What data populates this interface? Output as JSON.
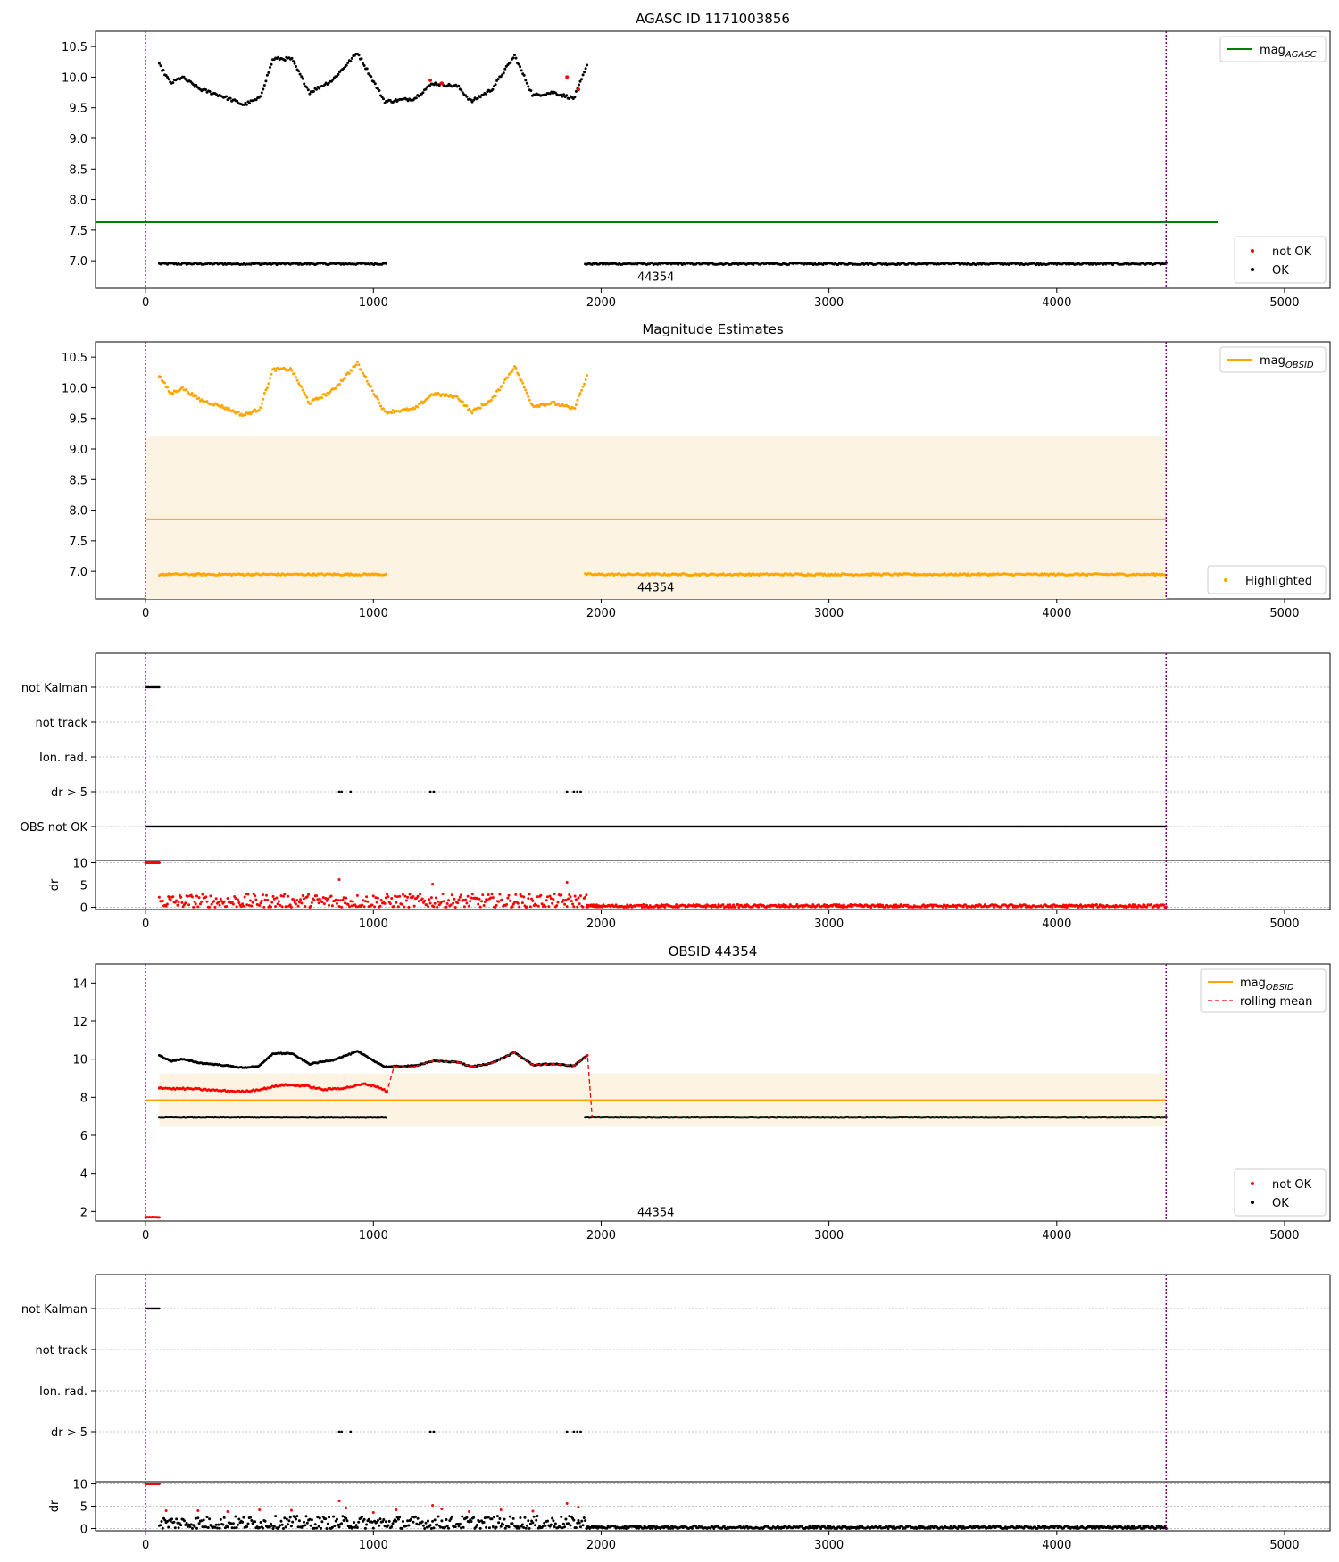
{
  "colors": {
    "ok": "#000000",
    "not_ok": "#ff0000",
    "agasc_line": "#008000",
    "obsid_line": "#ffa500",
    "band": "#fdf3e3",
    "obs_boundary": "#800080",
    "rolling_mean": "#ff0000",
    "grid": "#b0b0b0"
  },
  "chart_data": [
    {
      "id": "agasc",
      "type": "scatter",
      "title": "AGASC ID 1171003856",
      "xlim": [
        -220,
        5200
      ],
      "ylim": [
        6.55,
        10.75
      ],
      "xticks": [
        0,
        1000,
        2000,
        3000,
        4000,
        5000
      ],
      "yticks": [
        7.0,
        7.5,
        8.0,
        8.5,
        9.0,
        9.5,
        10.0,
        10.5
      ],
      "obs_boundaries": [
        0,
        4480
      ],
      "reference_line": {
        "label_main": "mag",
        "label_sub": "AGASC",
        "value": 7.63,
        "x_range": [
          -220,
          4710
        ]
      },
      "annotation": {
        "text": "44354",
        "x": 2240,
        "y": 6.75
      },
      "legend_top": "top-right",
      "legend_bottom": "bottom-right",
      "legend": [
        {
          "label": "not OK",
          "color": "#ff0000"
        },
        {
          "label": "OK",
          "color": "#000000"
        }
      ],
      "series": [
        {
          "name": "OK",
          "segments": [
            {
              "x_range": [
                60,
                1060
              ],
              "profile": "flat",
              "level": 6.95
            },
            {
              "x_range": [
                1930,
                4480
              ],
              "profile": "flat",
              "level": 6.95
            },
            {
              "x_range": [
                60,
                1940
              ],
              "profile": "wave",
              "points": [
                [
                  60,
                  10.2
                ],
                [
                  110,
                  9.9
                ],
                [
                  160,
                  10.0
                ],
                [
                  240,
                  9.8
                ],
                [
                  330,
                  9.7
                ],
                [
                  430,
                  9.55
                ],
                [
                  500,
                  9.65
                ],
                [
                  560,
                  10.3
                ],
                [
                  640,
                  10.3
                ],
                [
                  720,
                  9.75
                ],
                [
                  820,
                  9.95
                ],
                [
                  930,
                  10.4
                ],
                [
                  1050,
                  9.6
                ],
                [
                  1180,
                  9.65
                ],
                [
                  1260,
                  9.9
                ],
                [
                  1370,
                  9.85
                ],
                [
                  1430,
                  9.6
                ],
                [
                  1520,
                  9.8
                ],
                [
                  1620,
                  10.35
                ],
                [
                  1700,
                  9.7
                ],
                [
                  1790,
                  9.75
                ],
                [
                  1880,
                  9.65
                ],
                [
                  1940,
                  10.2
                ]
              ]
            }
          ]
        },
        {
          "name": "not OK",
          "points": [
            [
              1250,
              9.95
            ],
            [
              1300,
              9.9
            ],
            [
              1850,
              10.0
            ],
            [
              1900,
              9.8
            ]
          ]
        }
      ]
    },
    {
      "id": "estimates",
      "type": "scatter",
      "title": "Magnitude Estimates",
      "xlim": [
        -220,
        5200
      ],
      "ylim": [
        6.55,
        10.75
      ],
      "xticks": [
        0,
        1000,
        2000,
        3000,
        4000,
        5000
      ],
      "yticks": [
        7.0,
        7.5,
        8.0,
        8.5,
        9.0,
        9.5,
        10.0,
        10.5
      ],
      "obs_boundaries": [
        0,
        4480
      ],
      "band": {
        "x_range": [
          0,
          4480
        ],
        "y_range": [
          6.55,
          9.2
        ]
      },
      "reference_line": {
        "label_main": "mag",
        "label_sub": "OBSID",
        "value": 7.85,
        "x_range": [
          0,
          4480
        ]
      },
      "annotation": {
        "text": "44354",
        "x": 2240,
        "y": 6.75
      },
      "legend_top": "top-right",
      "legend_bottom": "bottom-right",
      "legend": [
        {
          "label": "Highlighted",
          "color": "#ffa500"
        }
      ],
      "series": [
        {
          "name": "Highlighted",
          "segments": [
            {
              "x_range": [
                60,
                1060
              ],
              "profile": "flat",
              "level": 6.95
            },
            {
              "x_range": [
                1930,
                4480
              ],
              "profile": "flat",
              "level": 6.95
            },
            {
              "x_range": [
                60,
                1940
              ],
              "profile": "wave",
              "points": [
                [
                  60,
                  10.2
                ],
                [
                  110,
                  9.9
                ],
                [
                  160,
                  10.0
                ],
                [
                  240,
                  9.8
                ],
                [
                  330,
                  9.7
                ],
                [
                  430,
                  9.55
                ],
                [
                  500,
                  9.65
                ],
                [
                  560,
                  10.3
                ],
                [
                  640,
                  10.3
                ],
                [
                  720,
                  9.75
                ],
                [
                  820,
                  9.95
                ],
                [
                  930,
                  10.4
                ],
                [
                  1050,
                  9.6
                ],
                [
                  1180,
                  9.65
                ],
                [
                  1260,
                  9.9
                ],
                [
                  1370,
                  9.85
                ],
                [
                  1430,
                  9.6
                ],
                [
                  1520,
                  9.8
                ],
                [
                  1620,
                  10.35
                ],
                [
                  1700,
                  9.7
                ],
                [
                  1790,
                  9.75
                ],
                [
                  1880,
                  9.65
                ],
                [
                  1940,
                  10.2
                ]
              ]
            }
          ]
        }
      ]
    },
    {
      "id": "flags1",
      "type": "scatter",
      "xlim": [
        -220,
        5200
      ],
      "categories": [
        "not Kalman",
        "not track",
        "Ion. rad.",
        "dr > 5",
        "OBS not OK"
      ],
      "obs_boundaries": [
        0,
        4480
      ],
      "flag_points": [
        {
          "category": "not Kalman",
          "x_range": [
            0,
            60
          ]
        },
        {
          "category": "dr > 5",
          "xs": [
            850,
            860,
            900,
            1250,
            1265,
            1850,
            1880,
            1895,
            1910
          ]
        },
        {
          "category": "OBS not OK",
          "x_range": [
            0,
            4480
          ]
        }
      ]
    },
    {
      "id": "dr1",
      "type": "scatter",
      "ylabel": "dr",
      "xlim": [
        -220,
        5200
      ],
      "ylim": [
        -0.5,
        10.5
      ],
      "xticks": [
        0,
        1000,
        2000,
        3000,
        4000,
        5000
      ],
      "yticks": [
        0,
        5,
        10
      ],
      "obs_boundaries": [
        0,
        4480
      ],
      "series": [
        {
          "name": "not OK",
          "segments": [
            {
              "x_range": [
                0,
                60
              ],
              "profile": "flat",
              "level": 10
            },
            {
              "x_range": [
                60,
                1940
              ],
              "profile": "noise",
              "range": [
                0,
                3.0
              ],
              "spikes": [
                [
                  850,
                  6.2
                ],
                [
                  1260,
                  5.2
                ],
                [
                  1850,
                  5.6
                ]
              ]
            },
            {
              "x_range": [
                1940,
                4480
              ],
              "profile": "noise",
              "range": [
                0,
                0.6
              ]
            }
          ]
        }
      ]
    },
    {
      "id": "obsid",
      "type": "scatter",
      "title": "OBSID 44354",
      "xlim": [
        -220,
        5200
      ],
      "ylim": [
        1.5,
        15
      ],
      "xticks": [
        0,
        1000,
        2000,
        3000,
        4000,
        5000
      ],
      "yticks": [
        2,
        4,
        6,
        8,
        10,
        12,
        14
      ],
      "obs_boundaries": [
        0,
        4480
      ],
      "band": {
        "x_range": [
          60,
          4480
        ],
        "y_range": [
          6.45,
          9.25
        ]
      },
      "reference_line": {
        "label_main": "mag",
        "label_sub": "OBSID",
        "value": 7.85,
        "x_range": [
          0,
          4480
        ]
      },
      "annotation": {
        "text": "44354",
        "x": 2240,
        "y": 2.0
      },
      "legend_top": "top-right",
      "legend_bottom": "bottom-right",
      "legend_top_extra": "rolling mean",
      "legend": [
        {
          "label": "not OK",
          "color": "#ff0000"
        },
        {
          "label": "OK",
          "color": "#000000"
        }
      ],
      "series": [
        {
          "name": "OK",
          "segments": [
            {
              "x_range": [
                60,
                1060
              ],
              "profile": "flat",
              "level": 6.95
            },
            {
              "x_range": [
                1930,
                4480
              ],
              "profile": "flat",
              "level": 6.95
            },
            {
              "x_range": [
                60,
                1940
              ],
              "profile": "wave",
              "points": [
                [
                  60,
                  10.2
                ],
                [
                  110,
                  9.9
                ],
                [
                  160,
                  10.0
                ],
                [
                  240,
                  9.8
                ],
                [
                  330,
                  9.7
                ],
                [
                  430,
                  9.55
                ],
                [
                  500,
                  9.65
                ],
                [
                  560,
                  10.3
                ],
                [
                  640,
                  10.3
                ],
                [
                  720,
                  9.75
                ],
                [
                  820,
                  9.95
                ],
                [
                  930,
                  10.4
                ],
                [
                  1050,
                  9.6
                ],
                [
                  1180,
                  9.65
                ],
                [
                  1260,
                  9.9
                ],
                [
                  1370,
                  9.85
                ],
                [
                  1430,
                  9.6
                ],
                [
                  1520,
                  9.8
                ],
                [
                  1620,
                  10.35
                ],
                [
                  1700,
                  9.7
                ],
                [
                  1790,
                  9.75
                ],
                [
                  1880,
                  9.65
                ],
                [
                  1940,
                  10.2
                ]
              ]
            }
          ]
        },
        {
          "name": "not OK",
          "segments": [
            {
              "x_range": [
                0,
                60
              ],
              "profile": "flat",
              "level": 1.7
            }
          ]
        },
        {
          "name": "rolling mean",
          "points": [
            [
              60,
              8.5
            ],
            [
              120,
              8.45
            ],
            [
              200,
              8.45
            ],
            [
              330,
              8.35
            ],
            [
              430,
              8.3
            ],
            [
              520,
              8.45
            ],
            [
              600,
              8.65
            ],
            [
              700,
              8.6
            ],
            [
              780,
              8.4
            ],
            [
              880,
              8.5
            ],
            [
              960,
              8.7
            ],
            [
              1020,
              8.55
            ],
            [
              1060,
              8.3
            ],
            [
              1090,
              9.6
            ],
            [
              1180,
              9.6
            ],
            [
              1260,
              9.9
            ],
            [
              1370,
              9.85
            ],
            [
              1430,
              9.6
            ],
            [
              1520,
              9.8
            ],
            [
              1620,
              10.35
            ],
            [
              1700,
              9.7
            ],
            [
              1790,
              9.75
            ],
            [
              1880,
              9.65
            ],
            [
              1940,
              10.2
            ],
            [
              1960,
              6.95
            ],
            [
              4480,
              6.95
            ]
          ]
        }
      ]
    },
    {
      "id": "flags2",
      "type": "scatter",
      "xlim": [
        -220,
        5200
      ],
      "categories": [
        "not Kalman",
        "not track",
        "Ion. rad.",
        "dr > 5"
      ],
      "obs_boundaries": [
        0,
        4480
      ],
      "flag_points": [
        {
          "category": "not Kalman",
          "x_range": [
            0,
            60
          ]
        },
        {
          "category": "dr > 5",
          "xs": [
            850,
            860,
            900,
            1250,
            1265,
            1850,
            1880,
            1895,
            1910
          ]
        }
      ]
    },
    {
      "id": "dr2",
      "type": "scatter",
      "ylabel": "dr",
      "xlim": [
        -220,
        5200
      ],
      "ylim": [
        -0.5,
        10.5
      ],
      "xticks": [
        0,
        1000,
        2000,
        3000,
        4000,
        5000
      ],
      "yticks": [
        0,
        5,
        10
      ],
      "obs_boundaries": [
        0,
        4480
      ],
      "series": [
        {
          "name": "OK",
          "segments": [
            {
              "x_range": [
                60,
                1940
              ],
              "profile": "noise",
              "range": [
                0,
                2.8
              ]
            },
            {
              "x_range": [
                1940,
                4480
              ],
              "profile": "noise",
              "range": [
                0,
                0.6
              ]
            }
          ]
        },
        {
          "name": "not OK",
          "segments": [
            {
              "x_range": [
                0,
                60
              ],
              "profile": "flat",
              "level": 10
            }
          ],
          "points": [
            [
              90,
              4.0
            ],
            [
              230,
              4.0
            ],
            [
              360,
              3.8
            ],
            [
              500,
              4.2
            ],
            [
              640,
              4.1
            ],
            [
              850,
              6.2
            ],
            [
              880,
              4.6
            ],
            [
              1000,
              3.6
            ],
            [
              1100,
              4.2
            ],
            [
              1260,
              5.2
            ],
            [
              1300,
              4.4
            ],
            [
              1420,
              3.8
            ],
            [
              1560,
              4.2
            ],
            [
              1700,
              3.9
            ],
            [
              1850,
              5.6
            ],
            [
              1900,
              4.8
            ]
          ]
        }
      ]
    }
  ]
}
